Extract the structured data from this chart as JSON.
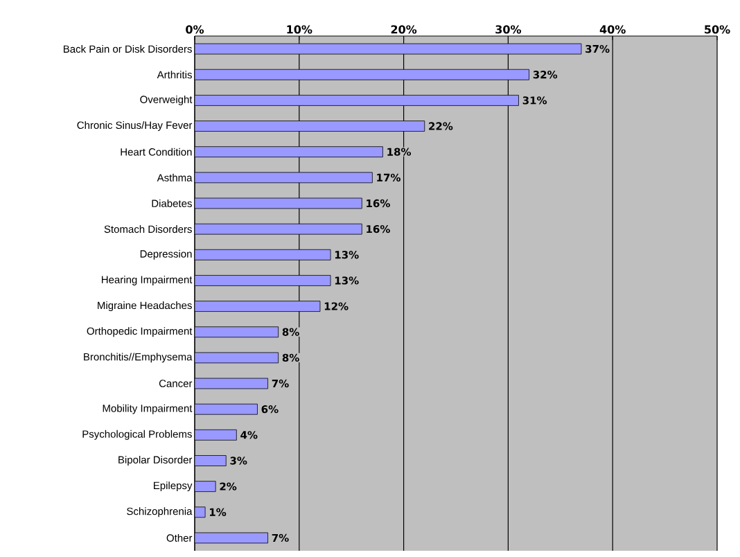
{
  "chart_data": {
    "type": "bar",
    "orientation": "horizontal",
    "categories": [
      "Back Pain or Disk Disorders",
      "Arthritis",
      "Overweight",
      "Chronic Sinus/Hay Fever",
      "Heart Condition",
      "Asthma",
      "Diabetes",
      "Stomach Disorders",
      "Depression",
      "Hearing Impairment",
      "Migraine Headaches",
      "Orthopedic Impairment",
      "Bronchitis//Emphysema",
      "Cancer",
      "Mobility Impairment",
      "Psychological Problems",
      "Bipolar Disorder",
      "Epilepsy",
      "Schizophrenia",
      "Other"
    ],
    "values": [
      37,
      32,
      31,
      22,
      18,
      17,
      16,
      16,
      13,
      13,
      12,
      8,
      8,
      7,
      6,
      4,
      3,
      2,
      1,
      7
    ],
    "value_labels": [
      "37%",
      "32%",
      "31%",
      "22%",
      "18%",
      "17%",
      "16%",
      "16%",
      "13%",
      "13%",
      "12%",
      "8%",
      "8%",
      "7%",
      "6%",
      "4%",
      "3%",
      "2%",
      "1%",
      "7%"
    ],
    "color": "#9999ff",
    "xlim": [
      0,
      50
    ],
    "xticks": [
      {
        "value": 0,
        "label": "0%"
      },
      {
        "value": 10,
        "label": "10%"
      },
      {
        "value": 20,
        "label": "20%"
      },
      {
        "value": 30,
        "label": "30%"
      },
      {
        "value": 40,
        "label": "40%"
      },
      {
        "value": 50,
        "label": "50%"
      }
    ],
    "grid": "x"
  }
}
